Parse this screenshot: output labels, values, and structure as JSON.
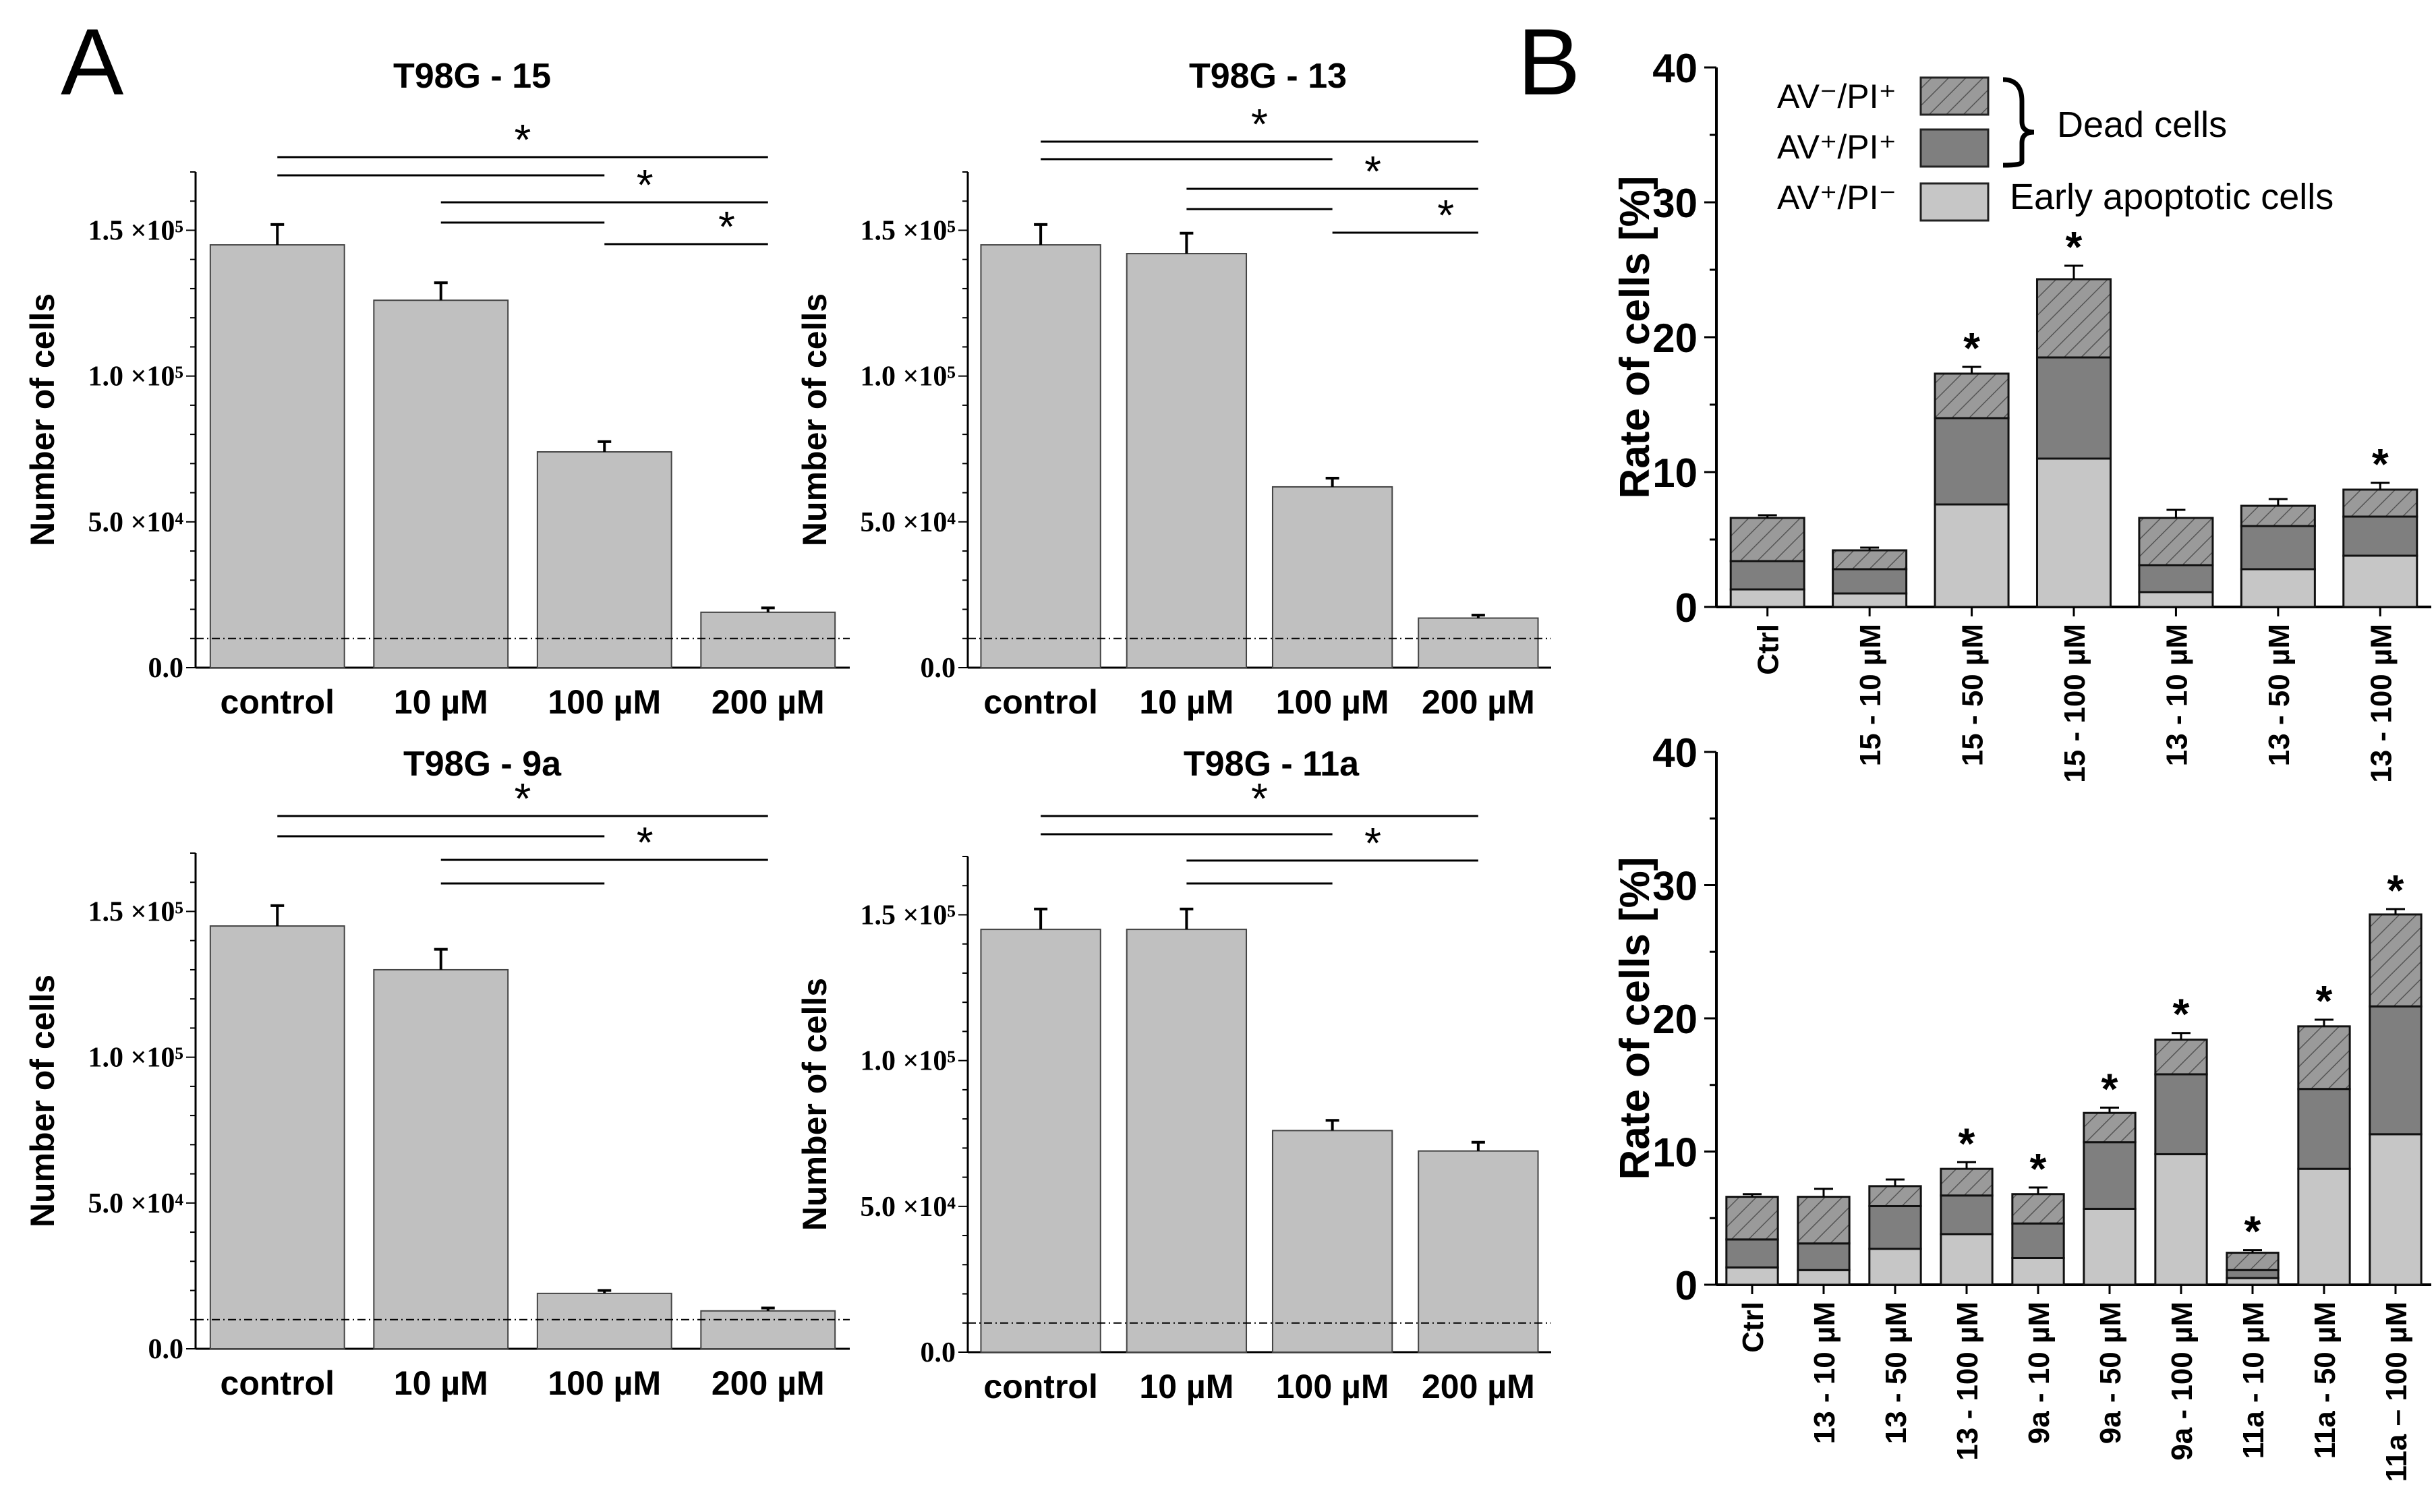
{
  "panel_labels": [
    "A",
    "B"
  ],
  "colors": {
    "bar_gray": "#c0c0c0",
    "early": "#c6c6c6",
    "dead_pos": "#7f7f7f",
    "dead_neg": "#9a9a9a",
    "stroke": "#222222"
  },
  "chart_data": [
    {
      "id": "T98G-15",
      "type": "bar",
      "title": "T98G - 15",
      "ylabel": "Number of cells",
      "categories": [
        "control",
        "10 µM",
        "100 µM",
        "200 µM"
      ],
      "values": [
        145000,
        126000,
        74000,
        19000
      ],
      "errors": [
        7000,
        6000,
        3500,
        1500
      ],
      "ylim": [
        0,
        170000
      ],
      "yticks": [
        0,
        50000,
        100000,
        150000
      ],
      "ytick_labels": [
        "0.0",
        "5.0 ×10⁴",
        "1.0 ×10⁵",
        "1.5 ×10⁵"
      ],
      "baseline_ref": 10000,
      "significance": [
        {
          "from": 0,
          "to": 3,
          "label": "*"
        },
        {
          "from": 0,
          "to": 2,
          "label": ""
        },
        {
          "from": 1,
          "to": 3,
          "label": "*"
        },
        {
          "from": 1,
          "to": 2,
          "label": ""
        },
        {
          "from": 2,
          "to": 3,
          "label": "*"
        }
      ]
    },
    {
      "id": "T98G-13",
      "type": "bar",
      "title": "T98G - 13",
      "ylabel": "Number of cells",
      "categories": [
        "control",
        "10 µM",
        "100 µM",
        "200 µM"
      ],
      "values": [
        145000,
        142000,
        62000,
        17000
      ],
      "errors": [
        7000,
        7000,
        3000,
        1000
      ],
      "ylim": [
        0,
        170000
      ],
      "yticks": [
        0,
        50000,
        100000,
        150000
      ],
      "ytick_labels": [
        "0.0",
        "5.0 ×10⁴",
        "1.0 ×10⁵",
        "1.5 ×10⁵"
      ],
      "baseline_ref": 10000,
      "significance": [
        {
          "from": 0,
          "to": 3,
          "label": "*"
        },
        {
          "from": 0,
          "to": 2,
          "label": ""
        },
        {
          "from": 1,
          "to": 3,
          "label": "*"
        },
        {
          "from": 1,
          "to": 2,
          "label": ""
        },
        {
          "from": 2,
          "to": 3,
          "label": "*"
        }
      ]
    },
    {
      "id": "T98G-9a",
      "type": "bar",
      "title": "T98G - 9a",
      "ylabel": "Number of cells",
      "categories": [
        "control",
        "10 µM",
        "100 µM",
        "200 µM"
      ],
      "values": [
        145000,
        130000,
        19000,
        13000
      ],
      "errors": [
        7000,
        7000,
        1000,
        1000
      ],
      "ylim": [
        0,
        170000
      ],
      "yticks": [
        0,
        50000,
        100000,
        150000
      ],
      "ytick_labels": [
        "0.0",
        "5.0 ×10⁴",
        "1.0 ×10⁵",
        "1.5 ×10⁵"
      ],
      "baseline_ref": 10000,
      "significance": [
        {
          "from": 0,
          "to": 3,
          "label": "*"
        },
        {
          "from": 0,
          "to": 2,
          "label": ""
        },
        {
          "from": 1,
          "to": 3,
          "label": "*"
        },
        {
          "from": 1,
          "to": 2,
          "label": ""
        }
      ]
    },
    {
      "id": "T98G-11a",
      "type": "bar",
      "title": "T98G - 11a",
      "ylabel": "Number of cells",
      "categories": [
        "control",
        "10 µM",
        "100 µM",
        "200 µM"
      ],
      "values": [
        145000,
        145000,
        76000,
        69000
      ],
      "errors": [
        7000,
        7000,
        3500,
        3000
      ],
      "ylim": [
        0,
        170000
      ],
      "yticks": [
        0,
        50000,
        100000,
        150000
      ],
      "ytick_labels": [
        "0.0",
        "5.0 ×10⁴",
        "1.0 ×10⁵",
        "1.5 ×10⁵"
      ],
      "baseline_ref": 10000,
      "significance": [
        {
          "from": 0,
          "to": 3,
          "label": "*"
        },
        {
          "from": 0,
          "to": 2,
          "label": ""
        },
        {
          "from": 1,
          "to": 3,
          "label": "*"
        },
        {
          "from": 1,
          "to": 2,
          "label": ""
        }
      ]
    },
    {
      "id": "B-top",
      "type": "bar",
      "stacked": true,
      "ylabel": "Rate of cells [%]",
      "ylim": [
        0,
        40
      ],
      "yticks": [
        0,
        10,
        20,
        30,
        40
      ],
      "categories": [
        "Ctrl",
        "15 - 10 µM",
        "15 - 50 µM",
        "15 - 100 µM",
        "13 - 10 µM",
        "13 - 50 µM",
        "13 - 100 µM"
      ],
      "series": [
        {
          "name": "AV⁺/PI⁻",
          "values": [
            1.3,
            1.0,
            7.6,
            11.0,
            1.1,
            2.8,
            3.8
          ],
          "errors": [
            0.4,
            0.6,
            0.9,
            1.4,
            0.3,
            0.7,
            0.8
          ]
        },
        {
          "name": "AV⁺/PI⁺",
          "values": [
            2.1,
            1.8,
            6.4,
            7.5,
            2.0,
            3.2,
            2.9
          ],
          "errors": [
            0.4,
            0.5,
            0.6,
            1.6,
            0.3,
            0.5,
            0.6
          ]
        },
        {
          "name": "AV⁻/PI⁺",
          "values": [
            3.2,
            1.4,
            3.3,
            5.8,
            3.5,
            1.5,
            2.0
          ],
          "errors": [
            0.2,
            0.2,
            0.5,
            1.0,
            0.6,
            0.5,
            0.5
          ]
        }
      ],
      "significant": [
        false,
        false,
        true,
        true,
        false,
        false,
        true
      ]
    },
    {
      "id": "B-bottom",
      "type": "bar",
      "stacked": true,
      "ylabel": "Rate of cells [%]",
      "ylim": [
        0,
        40
      ],
      "yticks": [
        0,
        10,
        20,
        30,
        40
      ],
      "categories": [
        "Ctrl",
        "13 - 10 µM",
        "13 - 50 µM",
        "13 - 100 µM",
        "9a - 10 µM",
        "9a - 50 µM",
        "9a - 100 µM",
        "11a - 10 µM",
        "11a - 50 µM",
        "11a – 100 µM"
      ],
      "series": [
        {
          "name": "AV⁺/PI⁻",
          "values": [
            1.3,
            1.1,
            2.7,
            3.8,
            2.0,
            5.7,
            9.8,
            0.5,
            8.7,
            11.3
          ],
          "errors": [
            0.4,
            0.3,
            0.7,
            0.8,
            0.5,
            0.9,
            0.9,
            0.2,
            0.6,
            0.5
          ]
        },
        {
          "name": "AV⁺/PI⁺",
          "values": [
            2.1,
            2.0,
            3.2,
            2.9,
            2.6,
            5.0,
            6.0,
            0.6,
            6.0,
            9.6
          ],
          "errors": [
            0.4,
            0.3,
            0.5,
            0.6,
            0.5,
            0.6,
            0.5,
            0.2,
            0.5,
            0.6
          ]
        },
        {
          "name": "AV⁻/PI⁺",
          "values": [
            3.2,
            3.5,
            1.5,
            2.0,
            2.2,
            2.2,
            2.6,
            1.3,
            4.7,
            6.9
          ],
          "errors": [
            0.2,
            0.6,
            0.5,
            0.5,
            0.5,
            0.4,
            0.5,
            0.2,
            0.5,
            0.4
          ]
        }
      ],
      "significant": [
        false,
        false,
        false,
        true,
        true,
        true,
        true,
        true,
        true,
        true
      ]
    }
  ],
  "legend": {
    "items": [
      {
        "label": "AV⁻/PI⁺",
        "style": "hatched"
      },
      {
        "label": "AV⁺/PI⁺",
        "style": "dark"
      },
      {
        "label": "AV⁺/PI⁻",
        "style": "light"
      }
    ],
    "dead_cells_label": "Dead cells",
    "early_apoptotic_label": "Early apoptotic cells"
  }
}
